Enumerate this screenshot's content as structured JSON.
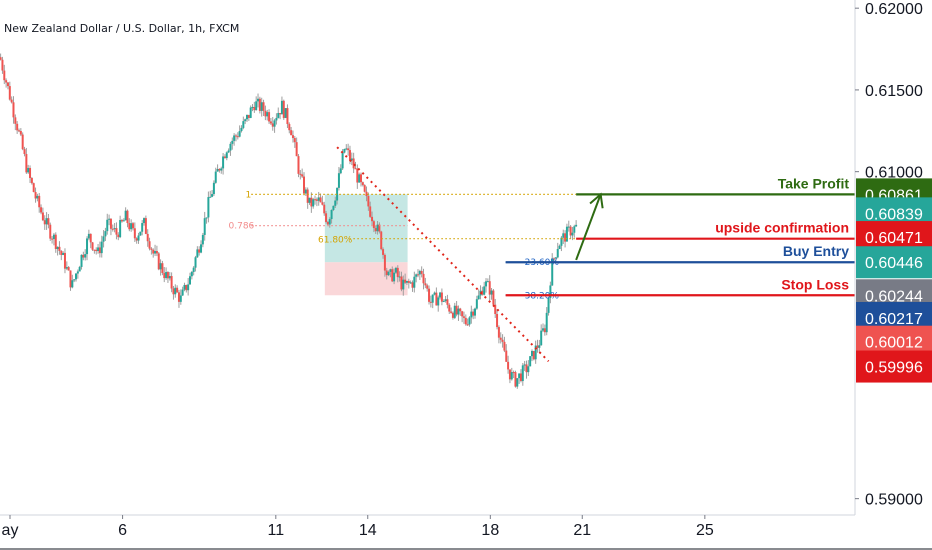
{
  "header": {
    "symbol_title": "New Zealand Dollar / U.S. Dollar, 1h, FXCM"
  },
  "chart_data": {
    "type": "candlestick",
    "title": "New Zealand Dollar / U.S. Dollar, 1h, FXCM",
    "ylim": [
      0.589,
      0.6205
    ],
    "price_axis_ticks": [
      "0.62000",
      "0.61500",
      "0.61000",
      "0.59000"
    ],
    "time_axis_ticks": [
      {
        "label": "ay",
        "day": 2.0
      },
      {
        "label": "6",
        "day": 6.0
      },
      {
        "label": "11",
        "day": 11.0
      },
      {
        "label": "14",
        "day": 14.0
      },
      {
        "label": "18",
        "day": 18.0
      },
      {
        "label": "21",
        "day": 21.0
      },
      {
        "label": "25",
        "day": 25.0
      }
    ],
    "xlim_days": [
      2.0,
      29.9
    ],
    "price_path": [
      [
        2.0,
        0.617
      ],
      [
        2.3,
        0.6148
      ],
      [
        2.6,
        0.6125
      ],
      [
        2.9,
        0.61
      ],
      [
        3.2,
        0.6082
      ],
      [
        3.5,
        0.6068
      ],
      [
        3.8,
        0.6058
      ],
      [
        4.1,
        0.6045
      ],
      [
        4.35,
        0.603
      ],
      [
        4.6,
        0.6045
      ],
      [
        4.9,
        0.606
      ],
      [
        5.2,
        0.605
      ],
      [
        5.5,
        0.6068
      ],
      [
        5.8,
        0.6062
      ],
      [
        6.1,
        0.6072
      ],
      [
        6.4,
        0.606
      ],
      [
        6.7,
        0.6068
      ],
      [
        7.0,
        0.605
      ],
      [
        7.3,
        0.604
      ],
      [
        7.6,
        0.603
      ],
      [
        7.9,
        0.6022
      ],
      [
        8.2,
        0.6035
      ],
      [
        8.5,
        0.6055
      ],
      [
        8.8,
        0.608
      ],
      [
        9.1,
        0.61
      ],
      [
        9.4,
        0.6115
      ],
      [
        9.7,
        0.6122
      ],
      [
        10.0,
        0.613
      ],
      [
        10.3,
        0.6142
      ],
      [
        10.6,
        0.6138
      ],
      [
        10.9,
        0.6132
      ],
      [
        11.2,
        0.614
      ],
      [
        11.5,
        0.6126
      ],
      [
        11.8,
        0.6096
      ],
      [
        12.1,
        0.608
      ],
      [
        12.4,
        0.6082
      ],
      [
        12.7,
        0.607
      ],
      [
        13.0,
        0.609
      ],
      [
        13.25,
        0.6115
      ],
      [
        13.5,
        0.6105
      ],
      [
        13.8,
        0.609
      ],
      [
        14.1,
        0.6075
      ],
      [
        14.4,
        0.606
      ],
      [
        14.65,
        0.6035
      ],
      [
        14.9,
        0.6038
      ],
      [
        15.15,
        0.603
      ],
      [
        15.45,
        0.6032
      ],
      [
        15.75,
        0.604
      ],
      [
        16.05,
        0.602
      ],
      [
        16.35,
        0.6024
      ],
      [
        16.65,
        0.6017
      ],
      [
        16.95,
        0.6012
      ],
      [
        17.2,
        0.6008
      ],
      [
        17.4,
        0.6015
      ],
      [
        17.6,
        0.6022
      ],
      [
        17.8,
        0.6032
      ],
      [
        18.0,
        0.6028
      ],
      [
        18.2,
        0.601
      ],
      [
        18.4,
        0.5992
      ],
      [
        18.6,
        0.5978
      ],
      [
        18.8,
        0.5972
      ],
      [
        19.0,
        0.5976
      ],
      [
        19.2,
        0.598
      ],
      [
        19.4,
        0.5988
      ],
      [
        19.6,
        0.5996
      ],
      [
        19.8,
        0.6006
      ],
      [
        20.0,
        0.6042
      ],
      [
        20.2,
        0.6055
      ],
      [
        20.4,
        0.606
      ],
      [
        20.6,
        0.6064
      ],
      [
        20.8,
        0.6066
      ]
    ],
    "zones": [
      {
        "name": "target-zone",
        "day_range": [
          12.6,
          15.3
        ],
        "price_range": [
          0.60446,
          0.60861
        ],
        "color": "#b2dfdb"
      },
      {
        "name": "stop-zone",
        "day_range": [
          12.6,
          15.3
        ],
        "price_range": [
          0.60244,
          0.60446
        ],
        "color": "#f8c9cc"
      }
    ],
    "fib_levels": [
      {
        "label": "1",
        "price": 0.60861,
        "day_range": [
          10.2,
          20.8
        ],
        "color": "#d4a300",
        "style": "dotted"
      },
      {
        "label": "0.786",
        "price": 0.6067,
        "day_range": [
          10.2,
          15.3
        ],
        "color": "#f28b8b",
        "style": "dotted"
      },
      {
        "label": "61.80%",
        "price": 0.6059,
        "day_range": [
          13.4,
          20.8
        ],
        "color": "#d4a300",
        "style": "dotted"
      },
      {
        "label": "23.60%",
        "price": 0.60446,
        "day_range": [
          18.5,
          29.9
        ],
        "color": "#1e63c4",
        "style": "dotted"
      },
      {
        "label": "38.20%",
        "price": 0.60244,
        "day_range": [
          18.5,
          29.9
        ],
        "color": "#1e63c4",
        "style": "dotted"
      }
    ],
    "levels": [
      {
        "label": "Take Profit",
        "price": 0.60861,
        "day_start": 20.8,
        "color": "#2e6b12"
      },
      {
        "label": "upside confirmation",
        "price": 0.6059,
        "day_start": 20.8,
        "color": "#e0161b"
      },
      {
        "label": "Buy Entry",
        "price": 0.60446,
        "day_start": 18.5,
        "color": "#1e4f9a"
      },
      {
        "label": "Stop Loss",
        "price": 0.60244,
        "day_start": 18.5,
        "color": "#e0161b"
      }
    ],
    "trendline": {
      "from": [
        13.0,
        0.6115
      ],
      "to": [
        19.9,
        0.5984
      ],
      "color": "#e0261b"
    },
    "arrow": {
      "from": [
        20.8,
        0.6046
      ],
      "to": [
        21.6,
        0.60861
      ],
      "color": "#2e6b12"
    },
    "price_badges": [
      {
        "text": "0.60861",
        "price": 0.60861,
        "bg": "#2e6b12",
        "fg": "#ffffff"
      },
      {
        "text": "0.60839",
        "price": 0.60745,
        "bg": "#26a69a",
        "fg": "#ffffff"
      },
      {
        "text": "0.60471",
        "price": 0.606,
        "bg": "#e0161b",
        "fg": "#ffffff"
      },
      {
        "text": "0.60446",
        "price": 0.60446,
        "bg": "#26a69a",
        "fg": "#ffffff"
      },
      {
        "text": "0.60244",
        "price": 0.60244,
        "bg": "#787b86",
        "fg": "#ffffff"
      },
      {
        "text": "0.60217",
        "price": 0.60105,
        "bg": "#1e4f9a",
        "fg": "#ffffff"
      },
      {
        "text": "0.60012",
        "price": 0.5996,
        "bg": "#ef5350",
        "fg": "#ffffff"
      },
      {
        "text": "0.59996",
        "price": 0.59808,
        "bg": "#e0161b",
        "fg": "#ffffff"
      }
    ],
    "colors": {
      "up": "#26a69a",
      "down": "#ef5350",
      "wick": "#9e9e9e",
      "axis": "#d1d4dc",
      "text": "#131722"
    }
  }
}
